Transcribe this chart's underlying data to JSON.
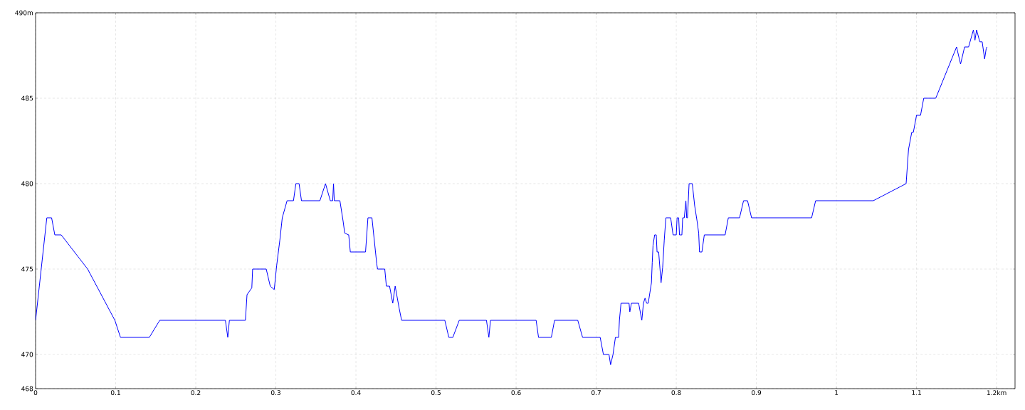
{
  "chart_data": {
    "type": "line",
    "xlim": [
      0,
      1.223
    ],
    "ylim": [
      468,
      490
    ],
    "xticks": [
      0,
      0.1,
      0.2,
      0.3,
      0.4,
      0.5,
      0.6,
      0.7,
      0.8,
      0.9,
      1,
      1.1,
      {
        "value": 1.2,
        "label": "1.2km"
      }
    ],
    "yticks": [
      468,
      470,
      475,
      480,
      485,
      {
        "value": 490,
        "label": "490m"
      }
    ],
    "grid": true,
    "series": [
      {
        "color": "#0000ff",
        "x": [
          0,
          0.014,
          0.02,
          0.024,
          0.032,
          0.065,
          0.099,
          0.106,
          0.142,
          0.155,
          0.237,
          0.24,
          0.242,
          0.262,
          0.264,
          0.27,
          0.271,
          0.288,
          0.293,
          0.298,
          0.301,
          0.305,
          0.308,
          0.314,
          0.322,
          0.325,
          0.329,
          0.332,
          0.355,
          0.362,
          0.368,
          0.371,
          0.372,
          0.373,
          0.38,
          0.384,
          0.386,
          0.391,
          0.393,
          0.412,
          0.415,
          0.42,
          0.426,
          0.427,
          0.436,
          0.438,
          0.442,
          0.446,
          0.449,
          0.454,
          0.457,
          0.511,
          0.516,
          0.521,
          0.529,
          0.563,
          0.566,
          0.568,
          0.625,
          0.628,
          0.644,
          0.648,
          0.677,
          0.683,
          0.705,
          0.709,
          0.716,
          0.718,
          0.721,
          0.724,
          0.728,
          0.729,
          0.731,
          0.741,
          0.742,
          0.744,
          0.753,
          0.757,
          0.759,
          0.761,
          0.763,
          0.765,
          0.767,
          0.769,
          0.77,
          0.771,
          0.773,
          0.775,
          0.776,
          0.778,
          0.781,
          0.783,
          0.785,
          0.787,
          0.793,
          0.796,
          0.8,
          0.801,
          0.803,
          0.804,
          0.807,
          0.808,
          0.81,
          0.812,
          0.813,
          0.814,
          0.816,
          0.82,
          0.823,
          0.826,
          0.828,
          0.829,
          0.832,
          0.835,
          0.861,
          0.865,
          0.879,
          0.884,
          0.889,
          0.894,
          0.969,
          0.974,
          1.046,
          1.087,
          1.09,
          1.094,
          1.096,
          1.1,
          1.105,
          1.109,
          1.124,
          1.15,
          1.155,
          1.16,
          1.165,
          1.171,
          1.173,
          1.175,
          1.179,
          1.182,
          1.185,
          1.187,
          1.188
        ],
        "values": [
          472,
          478,
          478,
          477,
          477,
          475,
          472,
          471,
          471,
          472,
          472,
          471,
          472,
          472,
          473.5,
          473.9,
          475,
          475,
          474,
          473.8,
          475.2,
          476.7,
          478,
          479,
          479,
          480,
          480,
          479,
          479,
          480,
          479,
          479,
          480,
          479,
          479,
          477.8,
          477.1,
          477,
          476,
          476,
          478,
          478,
          475.3,
          475,
          475,
          474,
          474,
          473,
          474,
          472.7,
          472,
          472,
          471,
          471,
          472,
          472,
          471,
          472,
          472,
          471,
          471,
          472,
          472,
          471,
          471,
          470,
          470,
          469.4,
          470,
          471,
          471,
          472,
          473,
          473,
          472.5,
          473,
          473,
          472,
          473,
          473.3,
          473,
          473,
          473.6,
          474.2,
          475.4,
          476.4,
          477,
          477,
          476,
          476,
          474.2,
          475.1,
          476.7,
          478,
          478,
          477,
          477,
          478,
          478,
          477,
          477,
          478,
          478,
          479,
          478,
          478,
          480,
          480,
          478.7,
          477.8,
          477.1,
          476,
          476,
          477,
          477,
          478,
          478,
          479,
          479,
          478,
          478,
          479,
          479,
          480,
          482,
          483,
          483,
          484,
          484,
          485,
          485,
          488,
          487,
          488,
          488,
          489,
          488.4,
          489,
          488.3,
          488.3,
          487.3,
          487.9,
          488
        ]
      }
    ]
  }
}
